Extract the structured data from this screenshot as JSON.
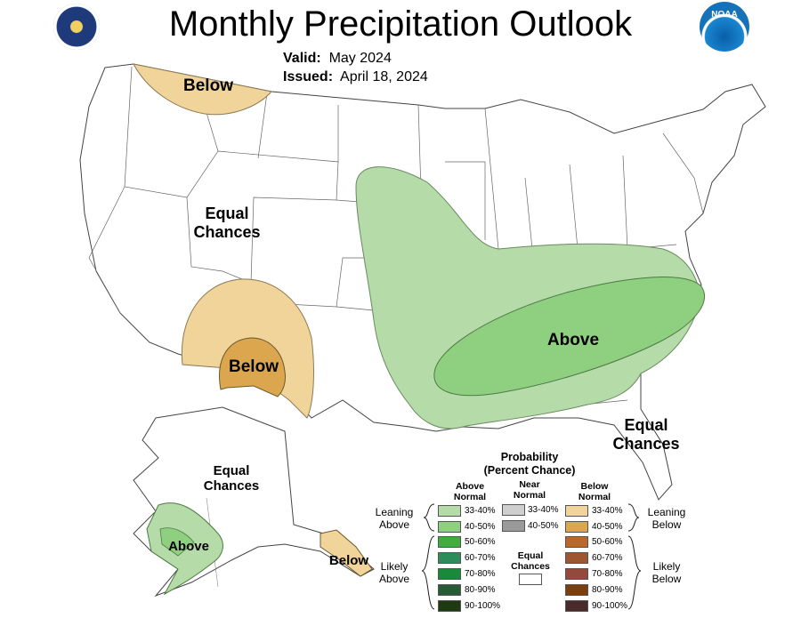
{
  "header": {
    "title": "Monthly Precipitation Outlook",
    "valid_label": "Valid:",
    "valid_value": "May 2024",
    "issued_label": "Issued:",
    "issued_value": "April 18, 2024"
  },
  "logos": {
    "left": "doc-seal-icon",
    "right": "noaa-logo-icon",
    "right_text": "NOAA"
  },
  "regions": {
    "below_north": "Below",
    "equal_west_1": "Equal",
    "equal_west_2": "Chances",
    "below_sw": "Below",
    "above_se": "Above",
    "equal_se_1": "Equal",
    "equal_se_2": "Chances",
    "alaska_equal_1": "Equal",
    "alaska_equal_2": "Chances",
    "alaska_above": "Above",
    "alaska_below": "Below"
  },
  "legend": {
    "title_1": "Probability",
    "title_2": "(Percent Chance)",
    "col_above_1": "Above",
    "col_above_2": "Normal",
    "col_near_1": "Near",
    "col_near_2": "Normal",
    "col_below_1": "Below",
    "col_below_2": "Normal",
    "leaning_above_1": "Leaning",
    "leaning_above_2": "Above",
    "likely_above_1": "Likely",
    "likely_above_2": "Above",
    "leaning_below_1": "Leaning",
    "leaning_below_2": "Below",
    "likely_below_1": "Likely",
    "likely_below_2": "Below",
    "equal_1": "Equal",
    "equal_2": "Chances",
    "above": [
      {
        "label": "33-40%",
        "color": "#b4dba8"
      },
      {
        "label": "40-50%",
        "color": "#8fcf80"
      },
      {
        "label": "50-60%",
        "color": "#3fae3f"
      },
      {
        "label": "60-70%",
        "color": "#2e8b5a"
      },
      {
        "label": "70-80%",
        "color": "#1a8a3a"
      },
      {
        "label": "80-90%",
        "color": "#285a35"
      },
      {
        "label": "90-100%",
        "color": "#1e3a12"
      }
    ],
    "near": [
      {
        "label": "33-40%",
        "color": "#cfcfcf"
      },
      {
        "label": "40-50%",
        "color": "#9a9a9a"
      }
    ],
    "below": [
      {
        "label": "33-40%",
        "color": "#f1d49a"
      },
      {
        "label": "40-50%",
        "color": "#dba64d"
      },
      {
        "label": "50-60%",
        "color": "#b9672b"
      },
      {
        "label": "60-70%",
        "color": "#9c5630"
      },
      {
        "label": "70-80%",
        "color": "#93493b"
      },
      {
        "label": "80-90%",
        "color": "#7a3f10"
      },
      {
        "label": "90-100%",
        "color": "#4a2a2a"
      }
    ]
  }
}
